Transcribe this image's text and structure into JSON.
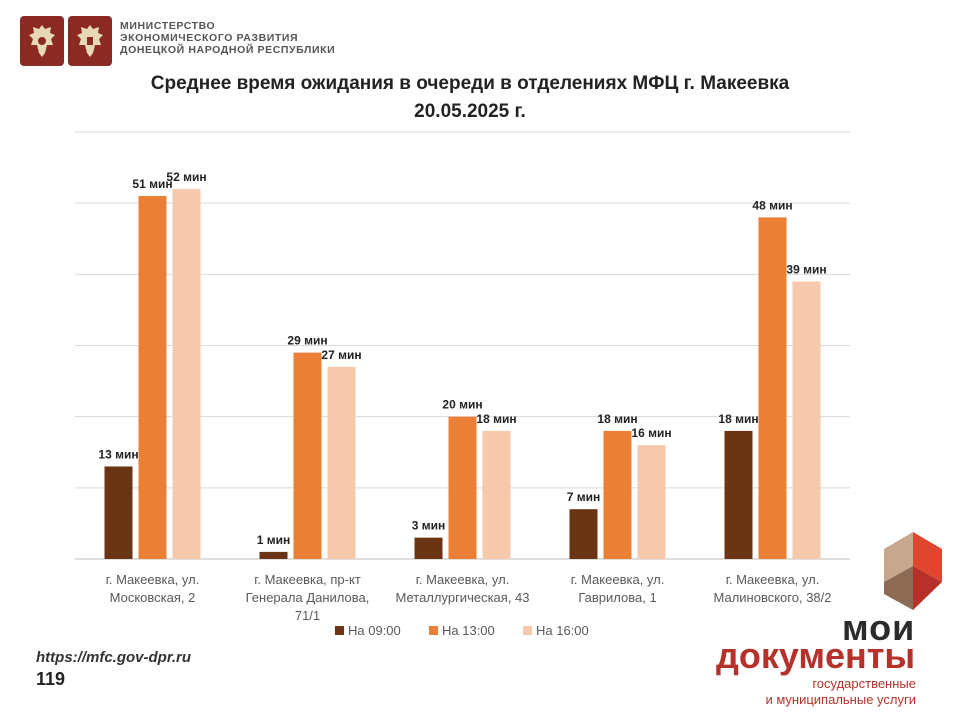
{
  "header": {
    "ministry_lines": [
      "МИНИСТЕРСТВО",
      "ЭКОНОМИЧЕСКОГО РАЗВИТИЯ",
      "ДОНЕЦКОЙ НАРОДНОЙ РЕСПУБЛИКИ"
    ]
  },
  "footer": {
    "url": "https://mfc.gov-dpr.ru",
    "page_number": "119"
  },
  "brand": {
    "word1": "мои",
    "word2": "документы",
    "subtitle_line1": "государственные",
    "subtitle_line2": "и муниципальные услуги"
  },
  "chart_data": {
    "type": "bar",
    "title_line1": "Среднее время ожидания в очереди в отделениях МФЦ г. Макеевка",
    "title_line2": "20.05.2025 г.",
    "categories": [
      [
        "г. Макеевка, ул.",
        "Московская, 2"
      ],
      [
        "г. Макеевка, пр-кт",
        "Генерала Данилова,",
        "71/1"
      ],
      [
        "г. Макеевка, ул.",
        "Металлургическая, 43"
      ],
      [
        "г. Макеевка, ул.",
        "Гаврилова, 1"
      ],
      [
        "г. Макеевка, ул.",
        "Малиновского, 38/2"
      ]
    ],
    "series": [
      {
        "name": "На 09:00",
        "color": "#6b3414",
        "values": [
          13,
          1,
          3,
          7,
          18
        ],
        "labels": [
          "13 мин",
          "1 мин",
          "3 мин",
          "7 мин",
          "18 мин"
        ]
      },
      {
        "name": "На 13:00",
        "color": "#ec7f36",
        "values": [
          51,
          29,
          20,
          18,
          48
        ],
        "labels": [
          "51 мин",
          "29 мин",
          "20 мин",
          "18 мин",
          "48 мин"
        ]
      },
      {
        "name": "На 16:00",
        "color": "#f6c9ad",
        "values": [
          52,
          27,
          18,
          16,
          39
        ],
        "labels": [
          "52 мин",
          "27 мин",
          "18 мин",
          "16 мин",
          "39 мин"
        ]
      }
    ],
    "ylim": [
      0,
      60
    ],
    "grid": true,
    "legend_position": "bottom"
  }
}
